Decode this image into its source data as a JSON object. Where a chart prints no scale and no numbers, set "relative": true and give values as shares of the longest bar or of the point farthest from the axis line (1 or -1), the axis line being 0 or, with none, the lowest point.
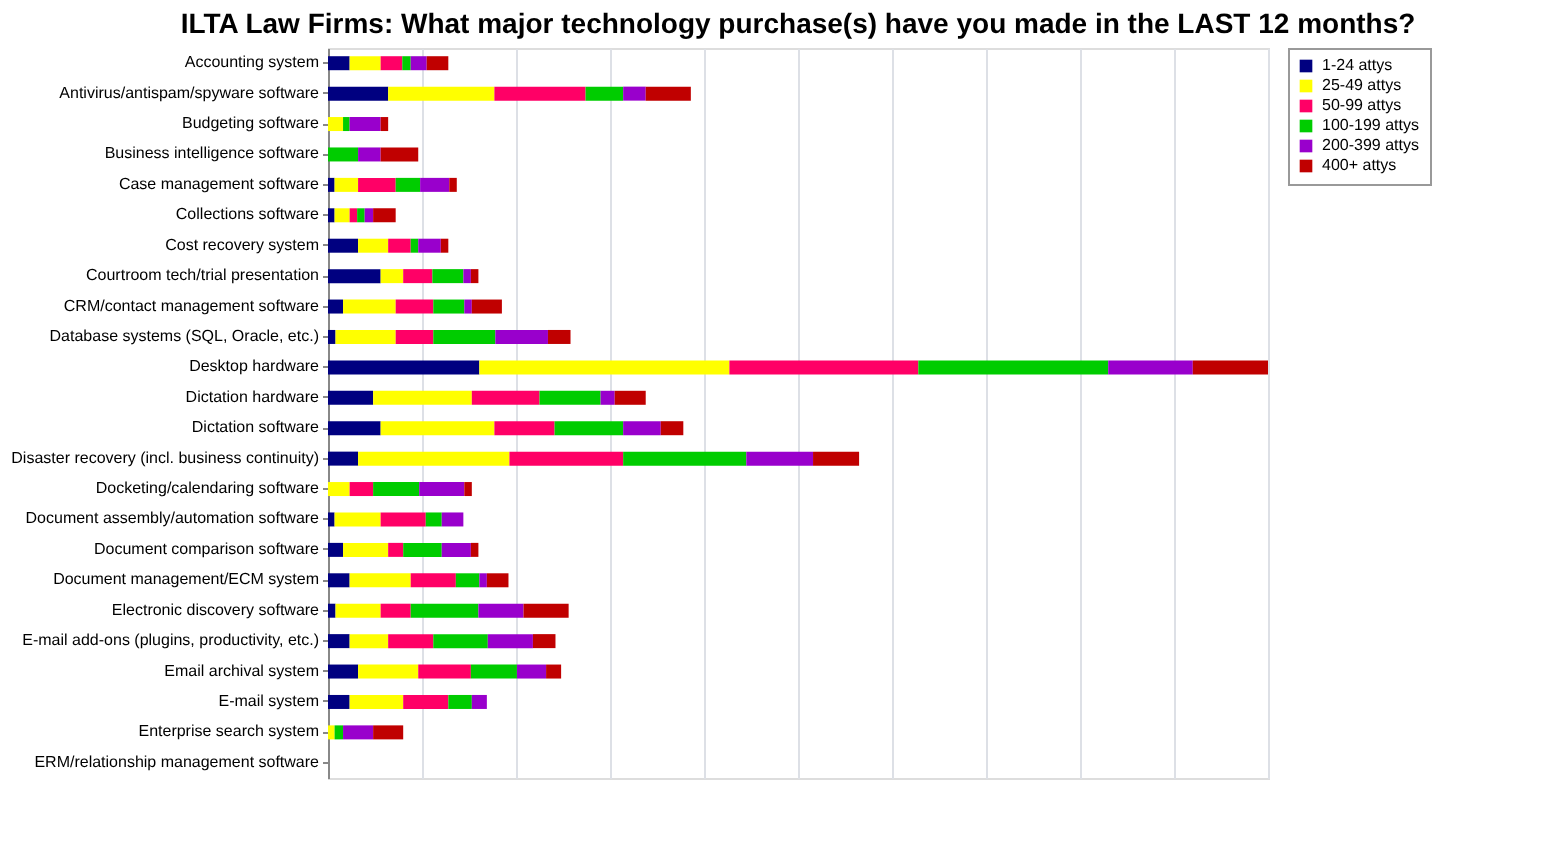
{
  "chart_data": {
    "type": "bar",
    "orientation": "horizontal",
    "stacked": true,
    "relative": true,
    "grid": "x",
    "legend": "top right",
    "title": "ILTA Law Firms:  What major technology purchase(s) have you made in the LAST 12 months?",
    "categories": [
      "Accounting system",
      "Antivirus/antispam/spyware software",
      "Budgeting software",
      "Business intelligence software",
      "Case management software",
      "Collections software",
      "Cost recovery system",
      "Courtroom tech/trial presentation",
      "CRM/contact management software",
      "Database systems (SQL, Oracle, etc.)",
      "Desktop hardware",
      "Dictation hardware",
      "Dictation software",
      "Disaster recovery (incl. business continuity)",
      "Docketing/calendaring software",
      "Document assembly/automation software",
      "Document comparison software",
      "Document management/ECM system",
      "Electronic discovery software",
      "E-mail add-ons (plugins, productivity, etc.)",
      "Email archival system",
      "E-mail system",
      "Enterprise search system",
      "ERM/relationship management software"
    ],
    "series": [
      {
        "name": "1-24 attys",
        "color": "#000080",
        "values": [
          0.023,
          0.064,
          0,
          0,
          0.007,
          0.007,
          0.032,
          0.056,
          0.016,
          0.008,
          0.161,
          0.048,
          0.056,
          0.032,
          0,
          0.007,
          0.016,
          0.023,
          0.008,
          0.023,
          0.032,
          0.023,
          0,
          0
        ]
      },
      {
        "name": "25-49 attys",
        "color": "#ffff00",
        "values": [
          0.033,
          0.113,
          0.016,
          0,
          0.025,
          0.016,
          0.032,
          0.024,
          0.056,
          0.064,
          0.266,
          0.105,
          0.121,
          0.161,
          0.023,
          0.049,
          0.048,
          0.065,
          0.048,
          0.041,
          0.064,
          0.057,
          0.007,
          0
        ]
      },
      {
        "name": "50-99 attys",
        "color": "#ff0066",
        "values": [
          0.023,
          0.097,
          0,
          0,
          0.04,
          0.008,
          0.024,
          0.031,
          0.04,
          0.04,
          0.201,
          0.072,
          0.064,
          0.121,
          0.025,
          0.048,
          0.016,
          0.048,
          0.032,
          0.048,
          0.056,
          0.048,
          0,
          0
        ]
      },
      {
        "name": "100-199 attys",
        "color": "#00cc00",
        "values": [
          0.009,
          0.04,
          0.007,
          0.032,
          0.026,
          0.008,
          0.008,
          0.033,
          0.033,
          0.066,
          0.202,
          0.065,
          0.073,
          0.131,
          0.049,
          0.017,
          0.041,
          0.025,
          0.072,
          0.058,
          0.049,
          0.025,
          0.009,
          0
        ]
      },
      {
        "name": "200-399 attys",
        "color": "#9900cc",
        "values": [
          0.017,
          0.024,
          0.033,
          0.024,
          0.031,
          0.009,
          0.024,
          0.008,
          0.008,
          0.056,
          0.09,
          0.015,
          0.04,
          0.071,
          0.048,
          0.023,
          0.031,
          0.008,
          0.048,
          0.048,
          0.031,
          0.016,
          0.032,
          0
        ]
      },
      {
        "name": "400+ attys",
        "color": "#c00000",
        "values": [
          0.023,
          0.048,
          0.008,
          0.04,
          0.008,
          0.024,
          0.008,
          0.008,
          0.032,
          0.024,
          0.08,
          0.033,
          0.024,
          0.049,
          0.008,
          0,
          0.008,
          0.023,
          0.048,
          0.024,
          0.016,
          0,
          0.032,
          0
        ]
      }
    ]
  }
}
